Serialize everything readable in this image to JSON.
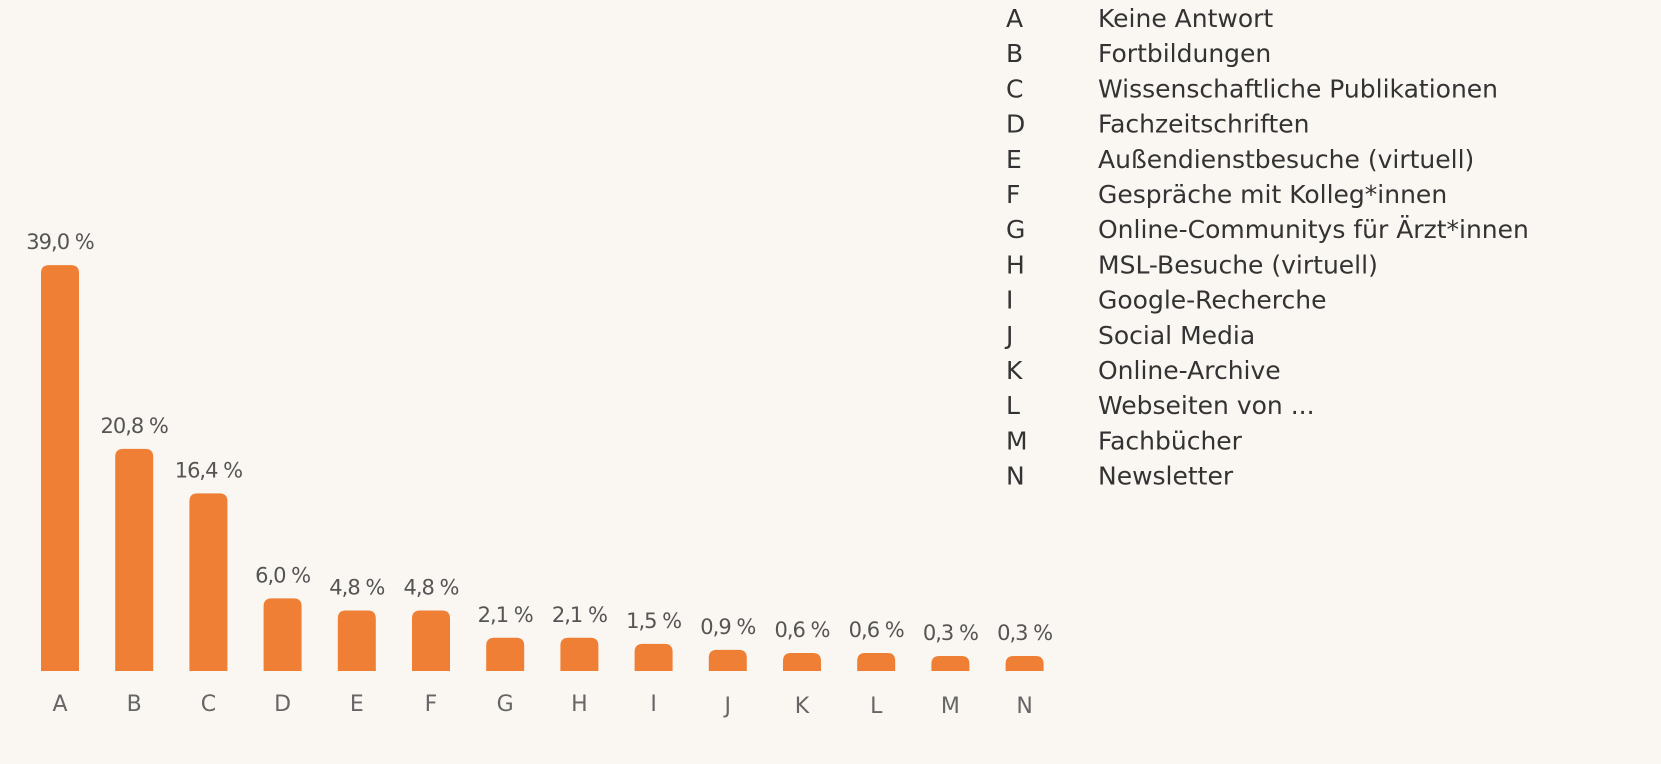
{
  "chart_data": {
    "type": "bar",
    "categories": [
      "A",
      "B",
      "C",
      "D",
      "E",
      "F",
      "G",
      "H",
      "I",
      "J",
      "K",
      "L",
      "M",
      "N"
    ],
    "values": [
      39.0,
      20.8,
      16.4,
      6.0,
      4.8,
      4.8,
      2.1,
      2.1,
      1.5,
      0.9,
      0.6,
      0.6,
      0.3,
      0.3
    ],
    "value_labels": [
      "39,0 %",
      "20,8 %",
      "16,4 %",
      "6,0 %",
      "4,8 %",
      "4,8 %",
      "2,1 %",
      "2,1 %",
      "1,5 %",
      "0,9 %",
      "0,6 %",
      "0,6 %",
      "0,3 %",
      "0,3 %"
    ],
    "color": "#ef7f34",
    "legend": [
      {
        "key": "A",
        "label": "Keine Antwort"
      },
      {
        "key": "B",
        "label": "Fortbildungen"
      },
      {
        "key": "C",
        "label": "Wissenschaftliche Publikationen"
      },
      {
        "key": "D",
        "label": "Fachzeitschriften"
      },
      {
        "key": "E",
        "label": "Außendienstbesuche (virtuell)"
      },
      {
        "key": "F",
        "label": "Gespräche mit Kolleg*innen"
      },
      {
        "key": "G",
        "label": "Online-Communitys für Ärzt*innen"
      },
      {
        "key": "H",
        "label": "MSL-Besuche (virtuell)"
      },
      {
        "key": "I",
        "label": "Google-Recherche"
      },
      {
        "key": "J",
        "label": "Social Media"
      },
      {
        "key": "K",
        "label": "Online-Archive"
      },
      {
        "key": "L",
        "label": "Webseiten von ..."
      },
      {
        "key": "M",
        "label": "Fachbücher"
      },
      {
        "key": "N",
        "label": "Newsletter"
      }
    ]
  }
}
